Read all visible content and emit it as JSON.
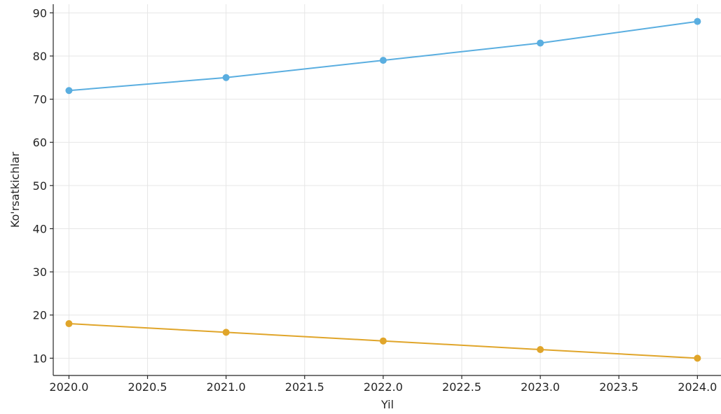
{
  "chart_data": {
    "type": "line",
    "xlabel": "Yil",
    "ylabel": "Ko'rsatkichlar",
    "x": [
      2020,
      2021,
      2022,
      2023,
      2024
    ],
    "x_ticks": [
      "2020.0",
      "2020.5",
      "2021.0",
      "2021.5",
      "2022.0",
      "2022.5",
      "2023.0",
      "2023.5",
      "2024.0"
    ],
    "y_ticks": [
      "10",
      "20",
      "30",
      "40",
      "50",
      "60",
      "70",
      "80",
      "90"
    ],
    "xlim": [
      2019.9,
      2024.15
    ],
    "ylim": [
      6,
      92
    ],
    "grid": true,
    "series": [
      {
        "values": [
          72,
          75,
          79,
          83,
          88
        ],
        "color": "#5aaee0"
      },
      {
        "values": [
          18,
          16,
          14,
          12,
          10
        ],
        "color": "#e0a52a"
      }
    ]
  }
}
